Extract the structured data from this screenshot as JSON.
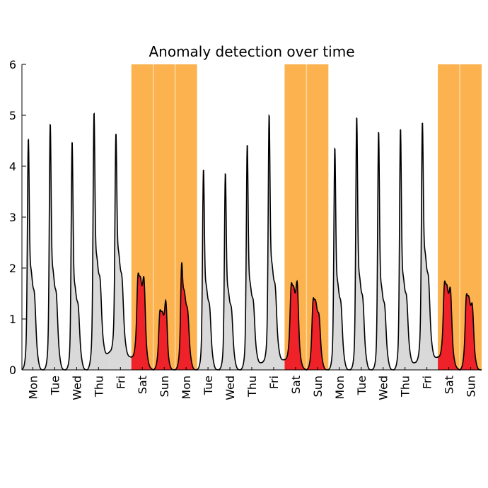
{
  "chart_data": {
    "type": "area",
    "title": "Anomaly detection over time",
    "xlabel": "",
    "ylabel": "",
    "ylim": [
      0,
      6
    ],
    "yticks": [
      "0",
      "1",
      "2",
      "3",
      "4",
      "5",
      "6"
    ],
    "grid": false,
    "categories": [
      "Mon",
      "Tue",
      "Wed",
      "Thu",
      "Fri",
      "Sat",
      "Sun",
      "Mon",
      "Tue",
      "Wed",
      "Thu",
      "Fri",
      "Sat",
      "Sun",
      "Mon",
      "Tue",
      "Wed",
      "Thu",
      "Fri",
      "Sat",
      "Sun"
    ],
    "anomalous_days": [
      5,
      6,
      7,
      12,
      13,
      19,
      20
    ],
    "daily_profile": {
      "peak1": [
        5.2,
        5.5,
        5.05,
        5.65,
        5.0,
        2.2,
        1.5,
        2.6,
        4.5,
        4.4,
        4.95,
        5.5,
        2.0,
        1.8,
        4.95,
        5.6,
        5.25,
        5.3,
        5.4,
        2.0,
        1.9
      ],
      "peak2": [
        2.6,
        2.6,
        2.2,
        2.75,
        2.65,
        2.65,
        2.0,
        2.05,
        2.2,
        2.1,
        2.2,
        2.55,
        2.5,
        1.85,
        2.3,
        2.45,
        2.2,
        2.35,
        2.8,
        2.35,
        2.1
      ],
      "night_low": [
        0.0,
        0.0,
        0.0,
        0.0,
        0.35,
        0.25,
        0.0,
        0.0,
        0.0,
        0.0,
        0.0,
        0.15,
        0.2,
        0.0,
        0.0,
        0.0,
        0.0,
        0.0,
        0.15,
        0.25,
        0.0
      ]
    },
    "colors": {
      "normal_fill": "#d9d9d9",
      "anomaly_fill": "#ee2228",
      "anomaly_band": "#fbb24f",
      "band_divider": "#ffd9a0",
      "line": "#000000"
    }
  }
}
